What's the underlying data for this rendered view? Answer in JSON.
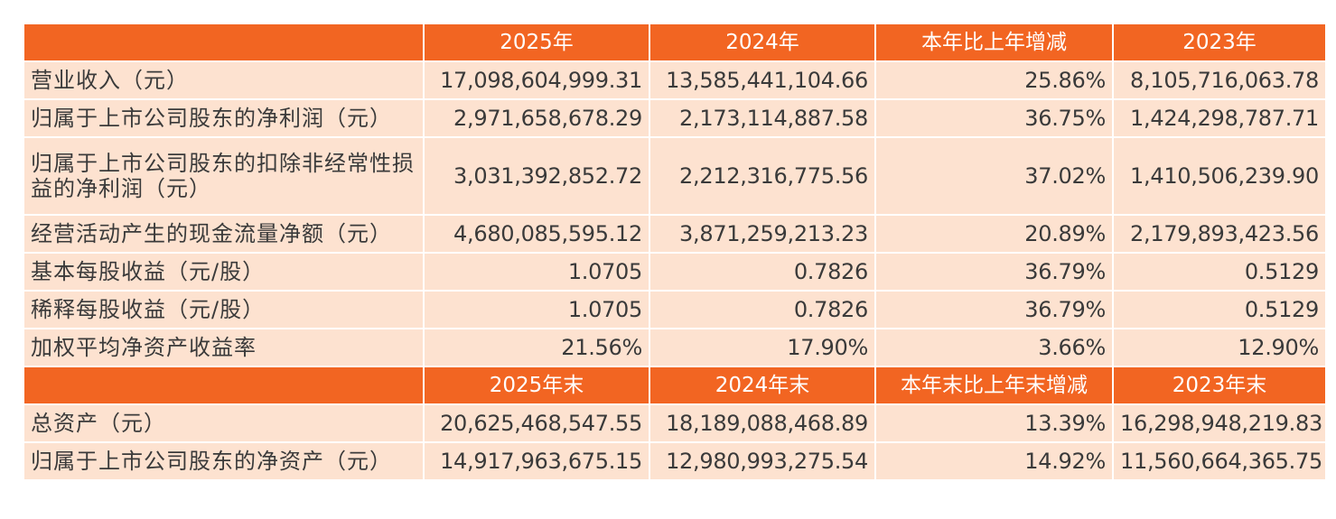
{
  "section1": {
    "headers": [
      "",
      "2025年",
      "2024年",
      "本年比上年增减",
      "2023年"
    ],
    "rows": [
      {
        "label": "营业收入（元）",
        "v2025": "17,098,604,999.31",
        "v2024": "13,585,441,104.66",
        "change": "25.86%",
        "v2023": "8,105,716,063.78"
      },
      {
        "label": "归属于上市公司股东的净利润（元）",
        "v2025": "2,971,658,678.29",
        "v2024": "2,173,114,887.58",
        "change": "36.75%",
        "v2023": "1,424,298,787.71"
      },
      {
        "label": "归属于上市公司股东的扣除非经常性损益的净利润（元）",
        "v2025": "3,031,392,852.72",
        "v2024": "2,212,316,775.56",
        "change": "37.02%",
        "v2023": "1,410,506,239.90"
      },
      {
        "label": "经营活动产生的现金流量净额（元）",
        "v2025": "4,680,085,595.12",
        "v2024": "3,871,259,213.23",
        "change": "20.89%",
        "v2023": "2,179,893,423.56"
      },
      {
        "label": "基本每股收益（元/股）",
        "v2025": "1.0705",
        "v2024": "0.7826",
        "change": "36.79%",
        "v2023": "0.5129"
      },
      {
        "label": "稀释每股收益（元/股）",
        "v2025": "1.0705",
        "v2024": "0.7826",
        "change": "36.79%",
        "v2023": "0.5129"
      },
      {
        "label": "加权平均净资产收益率",
        "v2025": "21.56%",
        "v2024": "17.90%",
        "change": "3.66%",
        "v2023": "12.90%"
      }
    ]
  },
  "section2": {
    "headers": [
      "",
      "2025年末",
      "2024年末",
      "本年末比上年末增减",
      "2023年末"
    ],
    "rows": [
      {
        "label": "总资产（元）",
        "v2025": "20,625,468,547.55",
        "v2024": "18,189,088,468.89",
        "change": "13.39%",
        "v2023": "16,298,948,219.83"
      },
      {
        "label": "归属于上市公司股东的净资产（元）",
        "v2025": "14,917,963,675.15",
        "v2024": "12,980,993,275.54",
        "change": "14.92%",
        "v2023": "11,560,664,365.75"
      }
    ]
  },
  "colors": {
    "header_bg": "#f26522",
    "row_bg": "#fde2d0",
    "text": "#3a3a3a"
  }
}
